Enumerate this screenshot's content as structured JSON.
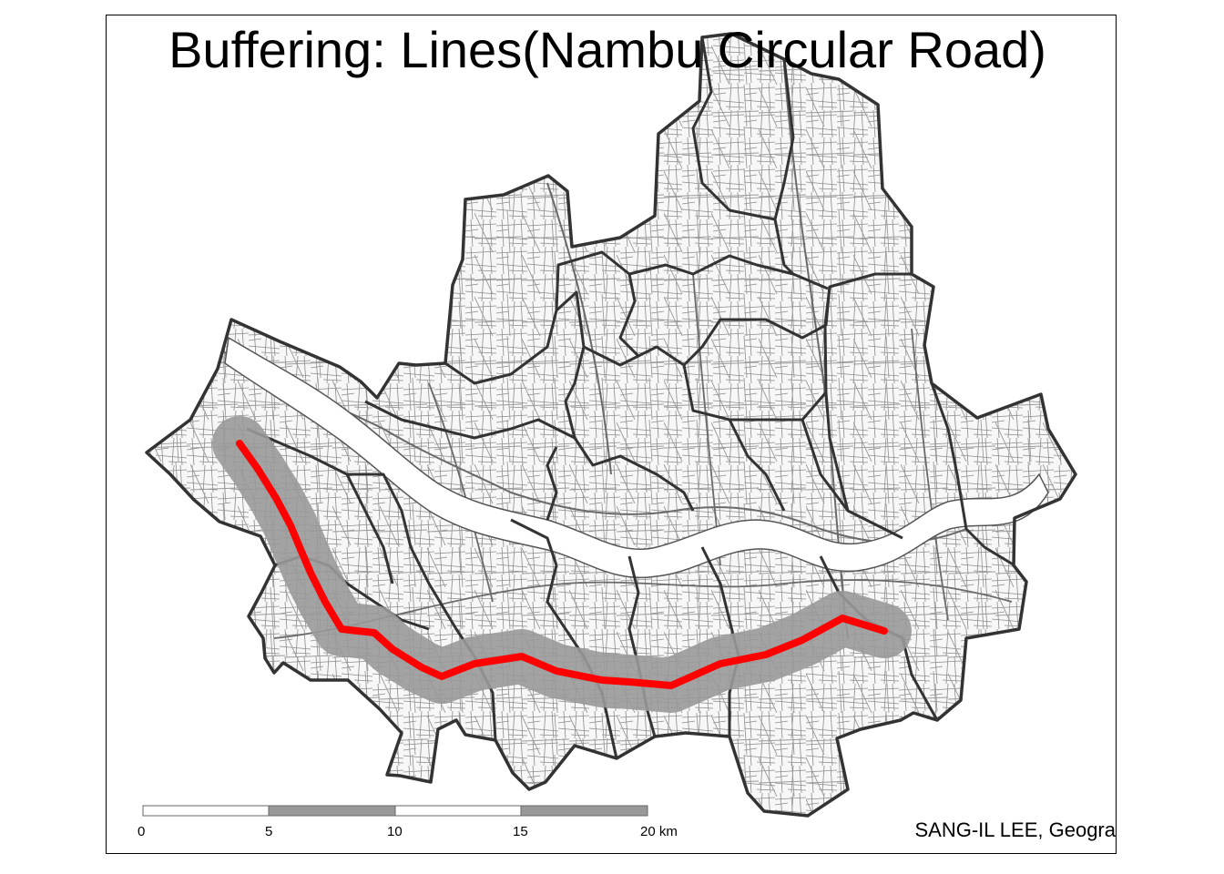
{
  "map": {
    "title": "Buffering: Lines(Nambu Circular Road)",
    "credit": "SANG-IL LEE, Geogra",
    "scale_bar": {
      "ticks": [
        "0",
        "5",
        "10",
        "15",
        "20 km"
      ],
      "unit": "km"
    },
    "layers": [
      {
        "name": "district-boundaries",
        "color": "#333333",
        "fill": "#f7f7f7"
      },
      {
        "name": "road-network",
        "color": "#808080"
      },
      {
        "name": "buffer-zone",
        "color": "#999999"
      },
      {
        "name": "nambu-circular-road",
        "color": "#ff0000"
      }
    ],
    "colors": {
      "background": "#ffffff",
      "district_fill": "#f7f7f7",
      "district_border": "#333333",
      "roads": "#808080",
      "river": "#ffffff",
      "buffer": "#999999",
      "route": "#ff0000",
      "scale_dark": "#999999",
      "scale_light": "#ffffff"
    }
  }
}
